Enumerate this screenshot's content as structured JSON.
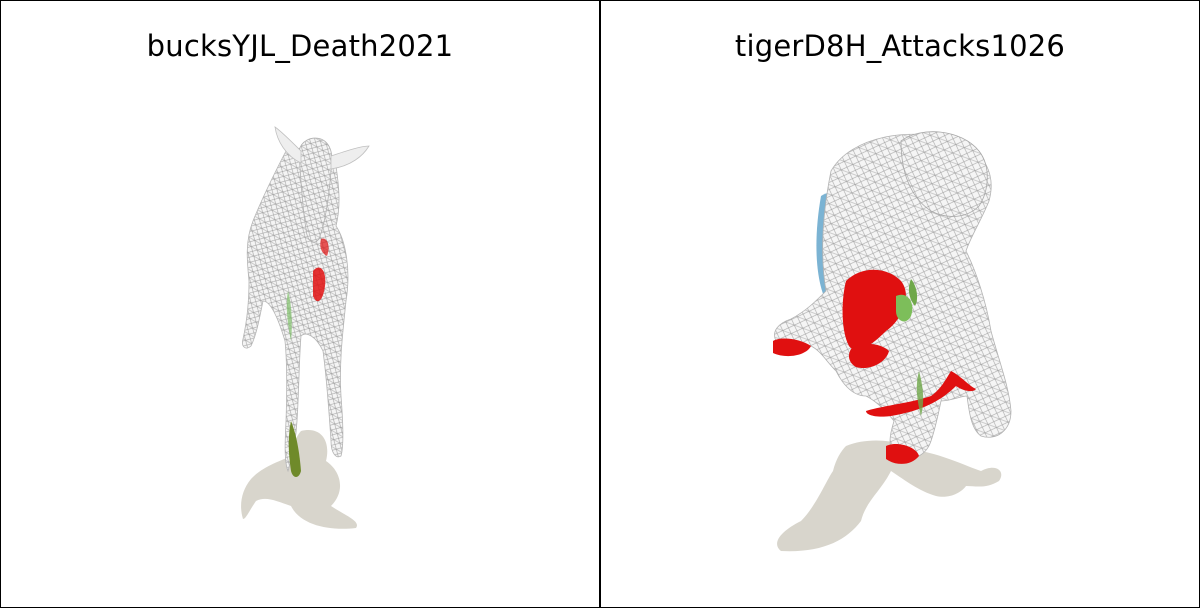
{
  "panels": [
    {
      "title": "bucksYJL_Death2021",
      "model": "deer-mesh",
      "shadow_color": "#d8d5cc"
    },
    {
      "title": "tigerD8H_Attacks1026",
      "model": "tiger-mesh",
      "shadow_color": "#d8d5cc"
    }
  ],
  "colors": {
    "mesh_fill": "#f2f2f2",
    "wire": "#9a9a9a",
    "accent_red": "#e01010",
    "accent_green": "#6fa84a",
    "accent_blue": "#3a7fb0"
  }
}
